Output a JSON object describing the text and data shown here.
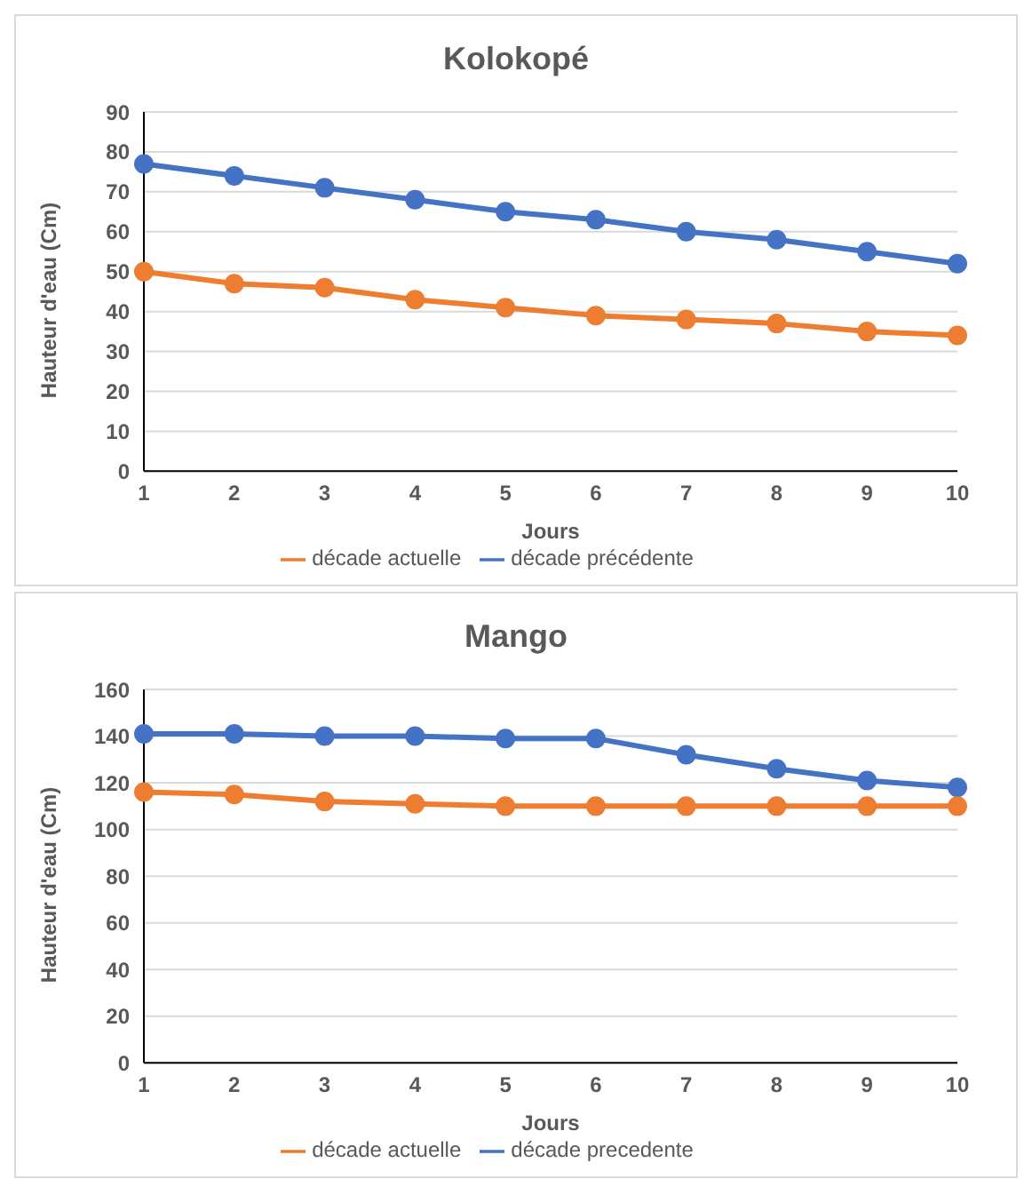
{
  "chart_data": [
    {
      "type": "line",
      "title": "Kolokopé",
      "xlabel": "Jours",
      "ylabel": "Hauteur d'eau (Cm)",
      "categories": [
        "1",
        "2",
        "3",
        "4",
        "5",
        "6",
        "7",
        "8",
        "9",
        "10"
      ],
      "series": [
        {
          "name": "décade précédente",
          "color": "#4472c4",
          "values": [
            77,
            74,
            71,
            68,
            65,
            63,
            60,
            58,
            55,
            52
          ]
        },
        {
          "name": "décade actuelle",
          "color": "#ed7d31",
          "values": [
            50,
            47,
            46,
            43,
            41,
            39,
            38,
            37,
            35,
            34
          ]
        }
      ],
      "ylim": [
        0,
        90
      ],
      "yticks": [
        0,
        10,
        20,
        30,
        40,
        50,
        60,
        70,
        80,
        90
      ],
      "grid": "y",
      "legend": "bottom",
      "marker": "circle",
      "line_style": "solid"
    },
    {
      "type": "line",
      "title": "Mango",
      "xlabel": "Jours",
      "ylabel": "Hauteur d'eau (Cm)",
      "categories": [
        "1",
        "2",
        "3",
        "4",
        "5",
        "6",
        "7",
        "8",
        "9",
        "10"
      ],
      "series": [
        {
          "name": "décade precedente",
          "color": "#4472c4",
          "values": [
            141,
            141,
            140,
            140,
            139,
            139,
            132,
            126,
            121,
            118
          ]
        },
        {
          "name": "décade actuelle",
          "color": "#ed7d31",
          "values": [
            116,
            115,
            112,
            111,
            110,
            110,
            110,
            110,
            110,
            110
          ]
        }
      ],
      "ylim": [
        0,
        160
      ],
      "yticks": [
        0,
        20,
        40,
        60,
        80,
        100,
        120,
        140,
        160
      ],
      "grid": "y",
      "legend": "bottom",
      "marker": "circle",
      "line_style": "solid"
    }
  ]
}
